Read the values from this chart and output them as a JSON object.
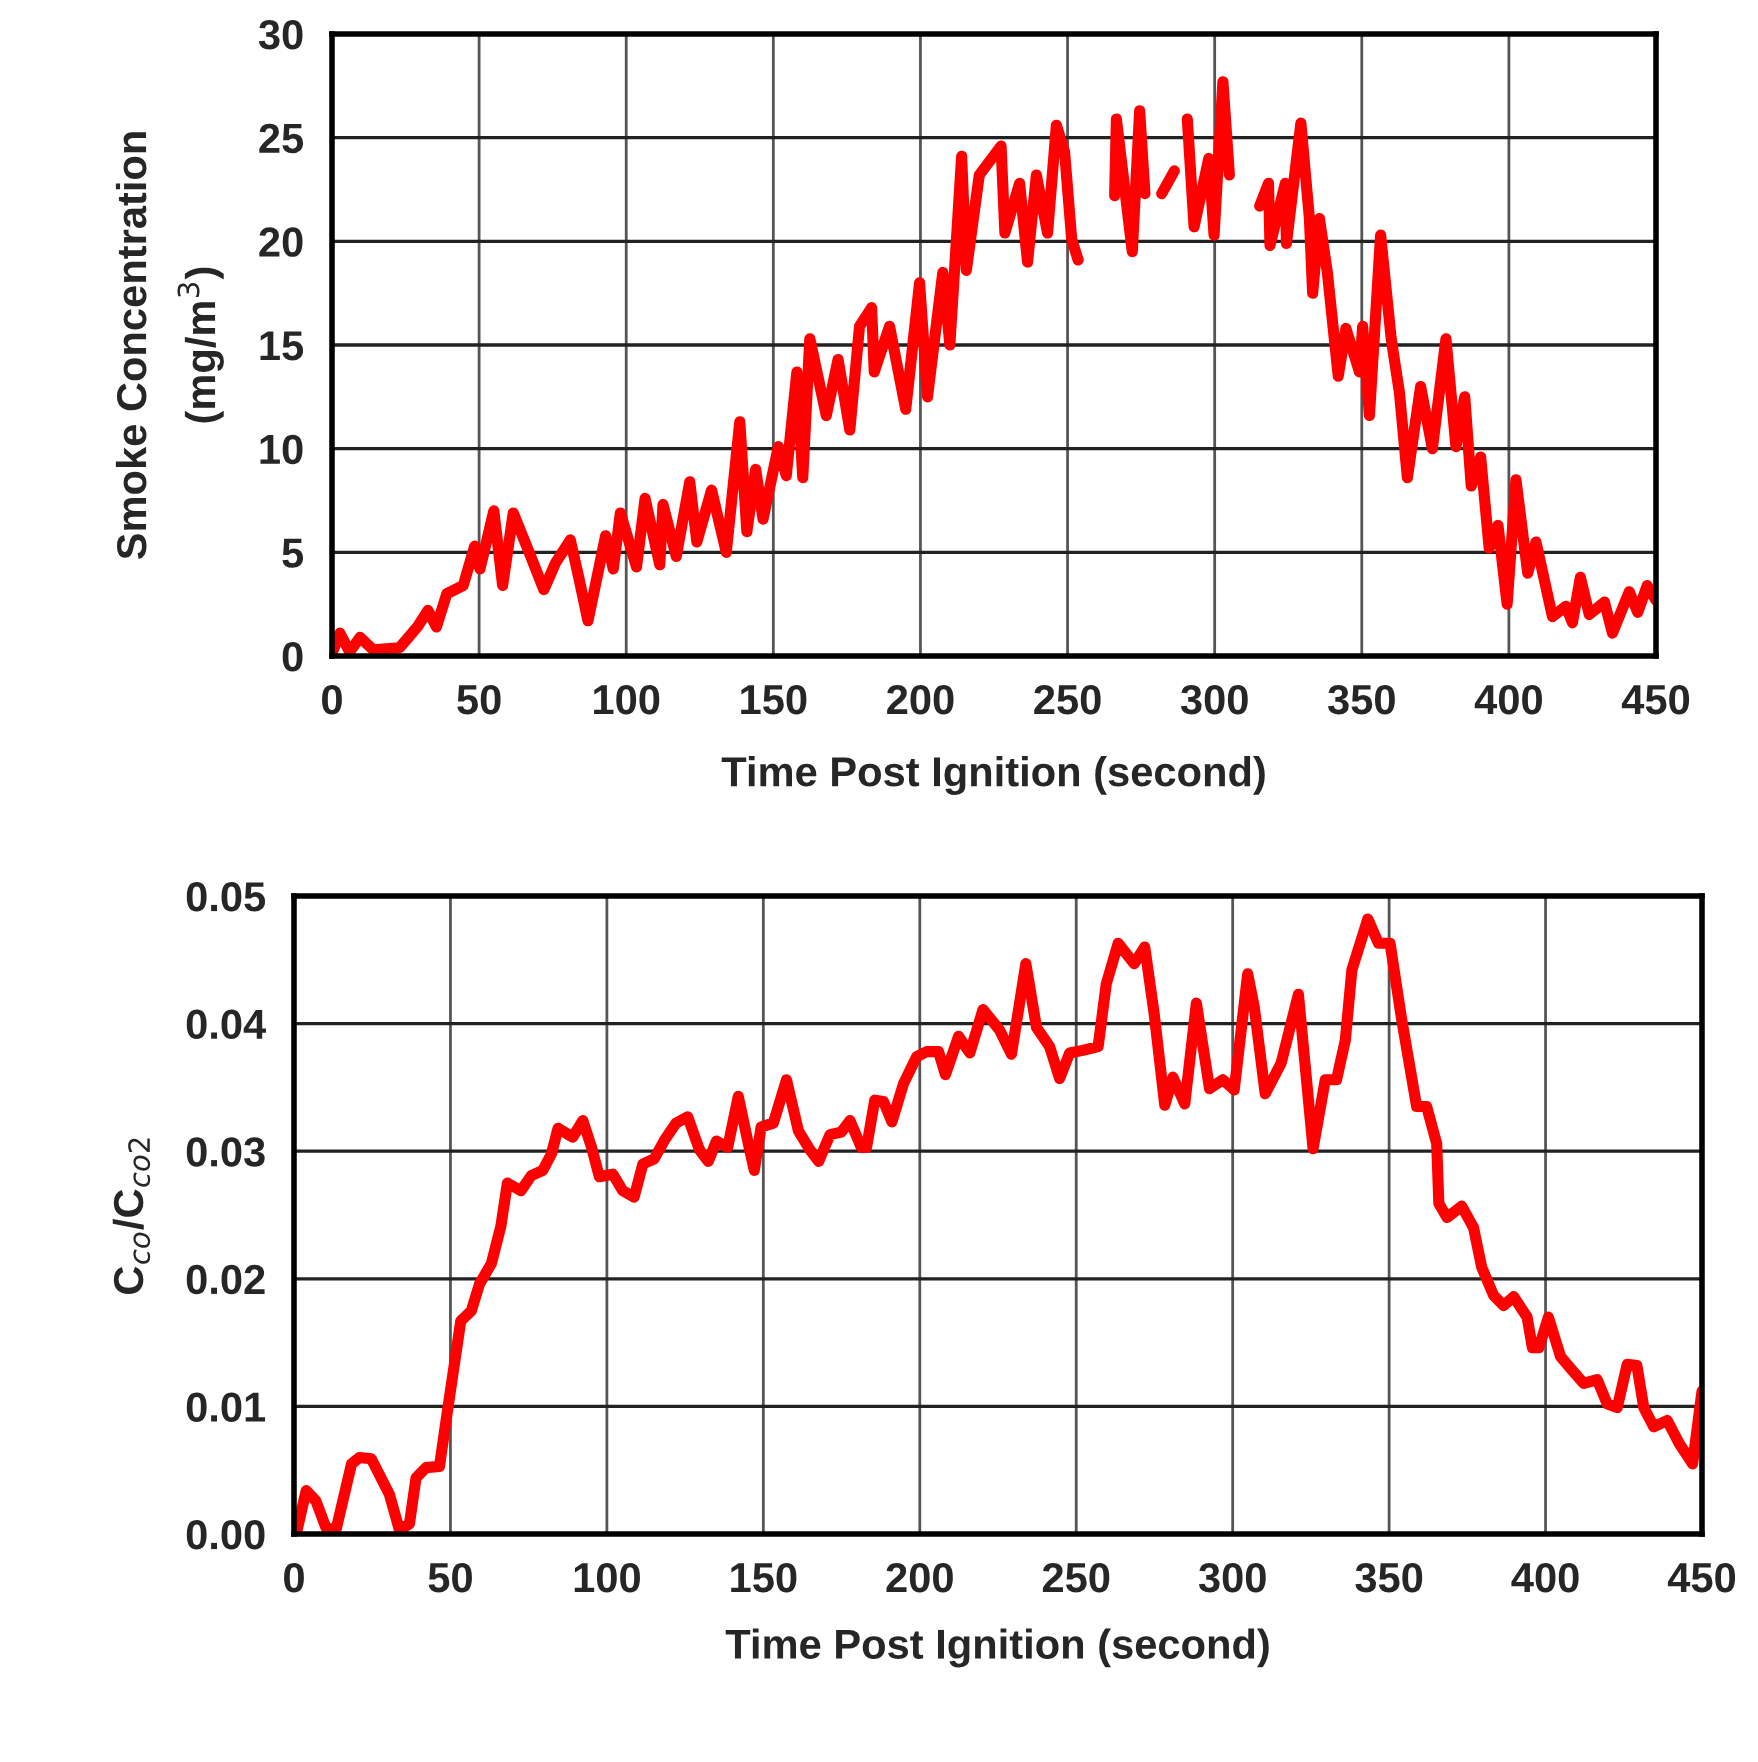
{
  "chart_data": [
    {
      "type": "line",
      "xlabel": "Time Post Ignition (second)",
      "ylabel": "Smoke Concentration\n(mg/m$^{3}$)",
      "xlim": [
        0,
        450
      ],
      "ylim": [
        0,
        30
      ],
      "xticks": [
        0,
        50,
        100,
        150,
        200,
        250,
        300,
        350,
        400,
        450
      ],
      "yticks": [
        0,
        5,
        10,
        15,
        20,
        25,
        30
      ],
      "grid": true,
      "line_style": "solid",
      "marker": "none",
      "series": [
        {
          "color": "#ff0000",
          "x": [
            0.5,
            2.7,
            6,
            9.5,
            14,
            23,
            29,
            32.6,
            35.5,
            39,
            44.6,
            48.5,
            50.3,
            55,
            58,
            61.6,
            67,
            72,
            76,
            81,
            84,
            87,
            93,
            95.6,
            98,
            103.5,
            106.4,
            111.4,
            112.5,
            117,
            121.6,
            124,
            129,
            134,
            138.6,
            141,
            144,
            146.5,
            151.7,
            154.4,
            158,
            160,
            162.4,
            168,
            172,
            176,
            179.3,
            183.4,
            184.3,
            189.5,
            195,
            199.7,
            202.4,
            207.6,
            210,
            214,
            215.6,
            220,
            227.4,
            228.7,
            233.7,
            236.4,
            239.4,
            243.2,
            246.2,
            249,
            251.4,
            253.6,
            260,
            266,
            266.6,
            272,
            274.5,
            276.3,
            279,
            282,
            286.3,
            288,
            290.7,
            293,
            298,
            299.8,
            302.8,
            305,
            310,
            315.3,
            318.3,
            318.8,
            324,
            324.4,
            329.3,
            332.2,
            333.3,
            335.6,
            338.3,
            342,
            344.6,
            349.2,
            350.3,
            352.6,
            356.4,
            360,
            362.8,
            365.5,
            370,
            374,
            378.6,
            382,
            385,
            387.2,
            390.4,
            393.3,
            396.3,
            399.4,
            402.4,
            406.4,
            409.2,
            414.8,
            419.4,
            421.6,
            424.3,
            427.3,
            432.5,
            435.2,
            440.9,
            443.8,
            447,
            449.9
          ],
          "values": [
            0.3,
            1.1,
            0.2,
            0.9,
            0.3,
            0.4,
            1.4,
            2.2,
            1.4,
            3.0,
            3.4,
            5.3,
            4.2,
            7.0,
            3.4,
            6.9,
            5.0,
            3.2,
            4.5,
            5.6,
            3.7,
            1.7,
            5.8,
            4.2,
            6.9,
            4.3,
            7.6,
            4.4,
            7.3,
            4.8,
            8.4,
            5.5,
            8.0,
            5.0,
            11.3,
            6.0,
            9.0,
            6.6,
            10.1,
            8.7,
            13.7,
            8.6,
            15.3,
            11.6,
            14.3,
            10.9,
            15.9,
            16.8,
            13.7,
            15.9,
            11.9,
            18.0,
            12.5,
            18.5,
            15.0,
            24.1,
            18.6,
            23.2,
            24.6,
            20.4,
            22.8,
            19.0,
            23.2,
            20.4,
            25.6,
            24.3,
            20.1,
            19.1,
            null,
            22.2,
            25.9,
            19.5,
            26.3,
            22.3,
            null,
            22.3,
            23.4,
            null,
            25.9,
            20.7,
            24.0,
            20.3,
            27.7,
            23.2,
            null,
            21.7,
            22.8,
            19.8,
            22.8,
            19.9,
            25.7,
            21.1,
            17.5,
            21.1,
            18.5,
            13.5,
            15.8,
            13.7,
            15.9,
            11.6,
            20.3,
            15.3,
            12.7,
            8.6,
            13.0,
            10.0,
            15.3,
            10.1,
            12.5,
            8.2,
            9.6,
            5.2,
            6.3,
            2.5,
            8.5,
            4.0,
            5.5,
            1.9,
            2.4,
            1.6,
            3.8,
            2.0,
            2.6,
            1.1,
            3.1,
            2.1,
            3.4,
            2.7
          ]
        }
      ]
    },
    {
      "type": "line",
      "xlabel": "Time Post Ignition (second)",
      "ylabel": "C$_{co}$/C$_{co2}$",
      "xlim": [
        0,
        450
      ],
      "ylim": [
        0,
        0.05
      ],
      "xticks": [
        0,
        50,
        100,
        150,
        200,
        250,
        300,
        350,
        400,
        450
      ],
      "yticks": [
        {
          "value": 0,
          "label": "0.00"
        },
        {
          "value": 0.01,
          "label": "0.01"
        },
        {
          "value": 0.02,
          "label": "0.02"
        },
        {
          "value": 0.03,
          "label": "0.03"
        },
        {
          "value": 0.04,
          "label": "0.04"
        },
        {
          "value": 0.05,
          "label": "0.05"
        }
      ],
      "grid": true,
      "line_style": "solid",
      "marker": "none",
      "series": [
        {
          "color": "#ff0000",
          "x": [
            0.7,
            3.9,
            7,
            10.2,
            13.4,
            18.4,
            20.9,
            24.7,
            30.5,
            33.7,
            36.9,
            39,
            42.2,
            46.5,
            48.6,
            53.3,
            56.7,
            59.3,
            63.1,
            66.1,
            68.2,
            72.5,
            75.9,
            79.5,
            82.3,
            84.4,
            89.1,
            92.3,
            95.1,
            97.6,
            101.9,
            105.1,
            108.7,
            111.5,
            115.1,
            118.5,
            122.1,
            125.8,
            129.6,
            132.4,
            135,
            138.6,
            142,
            145.2,
            147.1,
            149.3,
            153.2,
            157.4,
            161.2,
            164.9,
            167.7,
            171.3,
            174.9,
            177.7,
            181.3,
            183,
            185.6,
            188.4,
            191.1,
            194.8,
            199,
            202.2,
            206,
            208.2,
            212.4,
            216,
            220.2,
            225.5,
            229.3,
            233.9,
            237.3,
            241.5,
            244.7,
            247.9,
            252.1,
            257,
            259.6,
            263.4,
            268.5,
            271.9,
            274.9,
            278.3,
            280.9,
            284.7,
            288.4,
            292.6,
            296.9,
            300.5,
            304.8,
            306.9,
            310.4,
            315.5,
            321,
            325.7,
            329.6,
            333.2,
            336,
            338.1,
            343.2,
            346.6,
            350.3,
            353.9,
            358.8,
            362,
            365.2,
            365.9,
            368.5,
            373.2,
            377,
            379.6,
            383.4,
            386.6,
            389.8,
            394.1,
            395.8,
            397.9,
            400.9,
            404.8,
            408.6,
            412.2,
            416.5,
            419.7,
            422.9,
            426.1,
            429.2,
            431.4,
            434.6,
            438.9,
            442.7,
            447,
            450
          ],
          "values": [
            0.0,
            0.0034,
            0.0026,
            0.0005,
            0.0003,
            0.0055,
            0.006,
            0.0059,
            0.0031,
            0.0003,
            0.0008,
            0.0044,
            0.0052,
            0.0053,
            0.0089,
            0.0167,
            0.0175,
            0.0196,
            0.0212,
            0.0241,
            0.0275,
            0.0269,
            0.0281,
            0.0285,
            0.0298,
            0.0318,
            0.0311,
            0.0324,
            0.0303,
            0.028,
            0.0282,
            0.0269,
            0.0264,
            0.029,
            0.0294,
            0.0309,
            0.0322,
            0.0327,
            0.0301,
            0.0292,
            0.0308,
            0.0303,
            0.0343,
            0.0306,
            0.0285,
            0.0319,
            0.0322,
            0.0356,
            0.0316,
            0.0301,
            0.0292,
            0.0313,
            0.0315,
            0.0324,
            0.0303,
            0.0303,
            0.034,
            0.0339,
            0.0323,
            0.0353,
            0.0374,
            0.0378,
            0.0378,
            0.036,
            0.039,
            0.0377,
            0.0411,
            0.0395,
            0.0376,
            0.0447,
            0.0397,
            0.0382,
            0.0357,
            0.0377,
            0.0379,
            0.0382,
            0.0431,
            0.0463,
            0.0447,
            0.046,
            0.0408,
            0.0336,
            0.0358,
            0.0337,
            0.0416,
            0.0349,
            0.0356,
            0.0348,
            0.0439,
            0.0413,
            0.0345,
            0.0369,
            0.0423,
            0.0302,
            0.0356,
            0.0356,
            0.0387,
            0.0442,
            0.0482,
            0.0463,
            0.0463,
            0.0405,
            0.0335,
            0.0335,
            0.0306,
            0.0259,
            0.0248,
            0.0257,
            0.024,
            0.0209,
            0.0187,
            0.0179,
            0.0186,
            0.017,
            0.0146,
            0.0146,
            0.017,
            0.0139,
            0.0128,
            0.0118,
            0.0121,
            0.0102,
            0.0099,
            0.0133,
            0.0132,
            0.0099,
            0.0084,
            0.0089,
            0.0071,
            0.0055,
            0.0112
          ]
        }
      ]
    }
  ]
}
